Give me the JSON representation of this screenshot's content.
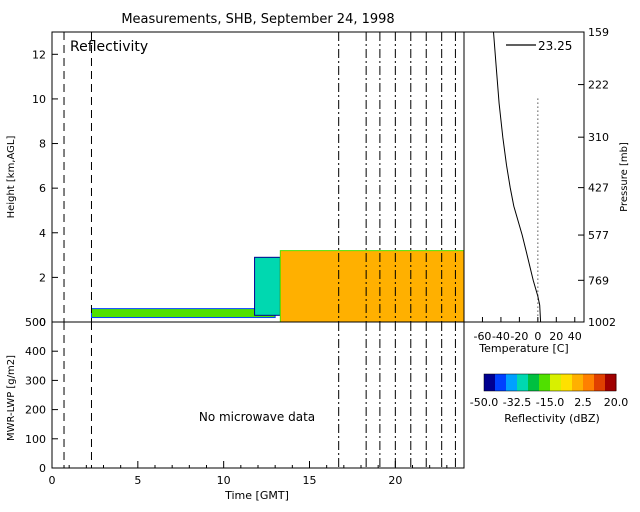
{
  "title": "Measurements, SHB, September 24, 1998",
  "refl_panel": {
    "label": "Reflectivity",
    "ylabel": "Height [km,AGL]",
    "ylim": [
      0,
      13
    ],
    "yticks": [
      "0",
      "2",
      "4",
      "6",
      "8",
      "10",
      "12"
    ]
  },
  "lwp_panel": {
    "ylabel": "MWR-LWP [g/m2]",
    "ylim": [
      0,
      500
    ],
    "yticks": [
      "0",
      "100",
      "200",
      "300",
      "400",
      "500"
    ],
    "note": "No microwave data"
  },
  "time_axis": {
    "xlabel": "Time [GMT]",
    "xlim": [
      0,
      24
    ],
    "xticks": [
      "0",
      "5",
      "10",
      "15",
      "20"
    ]
  },
  "sounding": {
    "pressure_label": "Pressure [mb]",
    "pressure_ticks": [
      "159",
      "222",
      "310",
      "427",
      "577",
      "769",
      "1002"
    ],
    "temperature_label": "Temperature [C]",
    "temperature_ticks": [
      "-60",
      "-40",
      "-20",
      "0",
      "20",
      "40"
    ],
    "legend_value": "23.25"
  },
  "colorbar": {
    "label": "Reflectivity (dBZ)",
    "ticks": [
      "-50.0",
      "-32.5",
      "-15.0",
      "2.5",
      "20.0"
    ],
    "range": [
      -50,
      20
    ],
    "colors": [
      "#000090",
      "#0040ff",
      "#00a0ff",
      "#00d8b0",
      "#00c040",
      "#50e000",
      "#d8f000",
      "#ffe000",
      "#ffb000",
      "#ff8000",
      "#e04000",
      "#a00000"
    ]
  },
  "chart_data": {
    "type": "heatmap",
    "title": "Measurements, SHB, September 24, 1998",
    "xlabel": "Time [GMT]",
    "ylabel": "Height [km,AGL]",
    "xlim": [
      0,
      24
    ],
    "ylim": [
      0,
      13
    ],
    "value_units": "dBZ",
    "layers": [
      {
        "t_start": 2.3,
        "t_end": 13.0,
        "h_bottom": 0.2,
        "h_top": 0.6,
        "dbz": -20
      },
      {
        "t_start": 11.8,
        "t_end": 13.3,
        "h_bottom": 0.3,
        "h_top": 2.9,
        "dbz": -30
      },
      {
        "t_start": 13.3,
        "t_end": 24.0,
        "h_bottom": 0.0,
        "h_top": 3.2,
        "dbz": 0
      }
    ],
    "event_times_dashed": [
      0.7,
      2.3
    ],
    "event_times_dashdot": [
      16.7,
      18.3,
      19.1,
      20.0,
      20.9,
      21.8,
      22.7,
      23.5
    ],
    "lwp": [],
    "sounding_profile": {
      "pressure_mb": [
        159,
        200,
        250,
        310,
        370,
        427,
        480,
        577,
        650,
        769,
        850,
        900,
        1002
      ],
      "temperature_c": [
        -48,
        -45,
        -42,
        -38,
        -34,
        -30,
        -26,
        -17,
        -12,
        -5,
        0,
        2,
        3
      ],
      "dotted_reference_c": 0
    }
  }
}
